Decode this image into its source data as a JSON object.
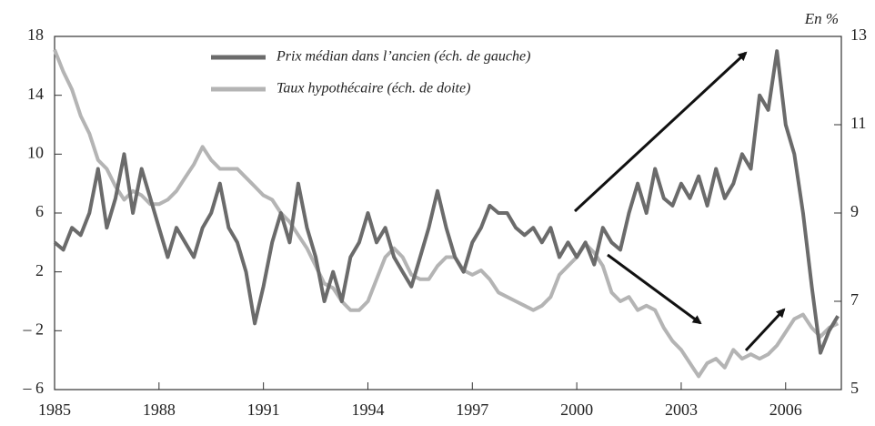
{
  "chart_data": {
    "type": "line",
    "y2_label": "En %",
    "x": [
      1985.0,
      1985.25,
      1985.5,
      1985.75,
      1986.0,
      1986.25,
      1986.5,
      1986.75,
      1987.0,
      1987.25,
      1987.5,
      1987.75,
      1988.0,
      1988.25,
      1988.5,
      1988.75,
      1989.0,
      1989.25,
      1989.5,
      1989.75,
      1990.0,
      1990.25,
      1990.5,
      1990.75,
      1991.0,
      1991.25,
      1991.5,
      1991.75,
      1992.0,
      1992.25,
      1992.5,
      1992.75,
      1993.0,
      1993.25,
      1993.5,
      1993.75,
      1994.0,
      1994.25,
      1994.5,
      1994.75,
      1995.0,
      1995.25,
      1995.5,
      1995.75,
      1996.0,
      1996.25,
      1996.5,
      1996.75,
      1997.0,
      1997.25,
      1997.5,
      1997.75,
      1998.0,
      1998.25,
      1998.5,
      1998.75,
      1999.0,
      1999.25,
      1999.5,
      1999.75,
      2000.0,
      2000.25,
      2000.5,
      2000.75,
      2001.0,
      2001.25,
      2001.5,
      2001.75,
      2002.0,
      2002.25,
      2002.5,
      2002.75,
      2003.0,
      2003.25,
      2003.5,
      2003.75,
      2004.0,
      2004.25,
      2004.5,
      2004.75,
      2005.0,
      2005.25,
      2005.5,
      2005.75,
      2006.0,
      2006.25,
      2006.5,
      2006.75,
      2007.0,
      2007.25,
      2007.5
    ],
    "series": [
      {
        "name": "Prix médian dans l’ancien (éch. de gauche)",
        "color": "#6b6b6b",
        "axis": "y",
        "values": [
          4,
          3.5,
          5,
          4.5,
          6,
          9,
          5,
          7,
          10,
          6,
          9,
          7,
          5,
          3,
          5,
          4,
          3,
          5,
          6,
          8,
          5,
          4,
          2,
          -1.5,
          1,
          4,
          6,
          4,
          8,
          5,
          3,
          0,
          2,
          0,
          3,
          4,
          6,
          4,
          5,
          3,
          2,
          1,
          3,
          5,
          7.5,
          5,
          3,
          2,
          4,
          5,
          6.5,
          6,
          6,
          5,
          4.5,
          5,
          4,
          5,
          3,
          4,
          3,
          4,
          2.5,
          5,
          4,
          3.5,
          6,
          8,
          6,
          9,
          7,
          6.5,
          8,
          7,
          8.5,
          6.5,
          9,
          7,
          8,
          10,
          9,
          14,
          13,
          17,
          12,
          10,
          6,
          1,
          -3.5,
          -2,
          -1
        ]
      },
      {
        "name": "Taux hypothécaire (éch. de doite)",
        "color": "#b4b4b4",
        "axis": "y2",
        "values": [
          12.7,
          12.2,
          11.8,
          11.2,
          10.8,
          10.2,
          10.0,
          9.6,
          9.3,
          9.5,
          9.4,
          9.2,
          9.2,
          9.3,
          9.5,
          9.8,
          10.1,
          10.5,
          10.2,
          10.0,
          10.0,
          10.0,
          9.8,
          9.6,
          9.4,
          9.3,
          9.0,
          8.8,
          8.5,
          8.2,
          7.8,
          7.4,
          7.3,
          7.0,
          6.8,
          6.8,
          7.0,
          7.5,
          8.0,
          8.2,
          8.0,
          7.6,
          7.5,
          7.5,
          7.8,
          8.0,
          8.0,
          7.7,
          7.6,
          7.7,
          7.5,
          7.2,
          7.1,
          7.0,
          6.9,
          6.8,
          6.9,
          7.1,
          7.6,
          7.8,
          8.0,
          8.3,
          8.1,
          7.8,
          7.2,
          7.0,
          7.1,
          6.8,
          6.9,
          6.8,
          6.4,
          6.1,
          5.9,
          5.6,
          5.3,
          5.6,
          5.7,
          5.5,
          5.9,
          5.7,
          5.8,
          5.7,
          5.8,
          6.0,
          6.3,
          6.6,
          6.7,
          6.4,
          6.2,
          6.4,
          6.5
        ]
      }
    ],
    "xlim": [
      1985,
      2007.6
    ],
    "xticks": [
      1985,
      1988,
      1991,
      1994,
      1997,
      2000,
      2003,
      2006
    ],
    "ylim": [
      -6,
      18
    ],
    "yticks": [
      {
        "value": -6,
        "label": "– 6"
      },
      {
        "value": -2,
        "label": "– 2"
      },
      2,
      6,
      10,
      14,
      18
    ],
    "y2lim": [
      5,
      13
    ],
    "y2ticks": [
      5,
      7,
      9,
      11,
      13
    ],
    "legend": "upper center",
    "grid": false
  }
}
